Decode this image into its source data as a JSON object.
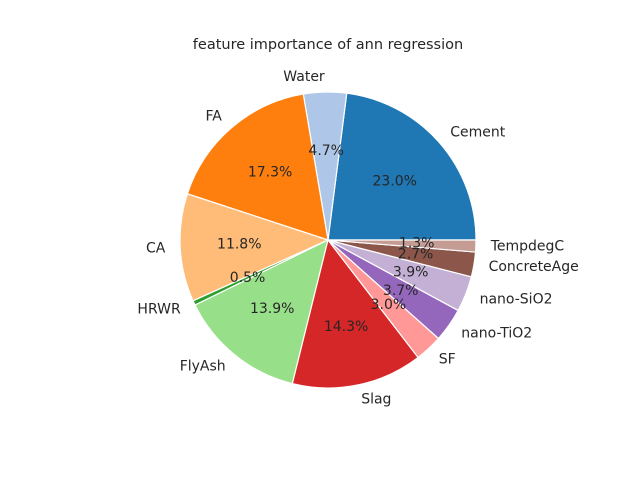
{
  "chart_data": {
    "type": "pie",
    "title": "feature importance of ann regression",
    "slices": [
      {
        "label": "Cement",
        "value": 23.0,
        "pct_label": "23.0%",
        "color": "#1f77b4"
      },
      {
        "label": "Water",
        "value": 4.7,
        "pct_label": "4.7%",
        "color": "#aec7e8"
      },
      {
        "label": "FA",
        "value": 17.3,
        "pct_label": "17.3%",
        "color": "#ff7f0e"
      },
      {
        "label": "CA",
        "value": 11.8,
        "pct_label": "11.8%",
        "color": "#ffbb78"
      },
      {
        "label": "HRWR",
        "value": 0.5,
        "pct_label": "0.5%",
        "color": "#2ca02c"
      },
      {
        "label": "FlyAsh",
        "value": 13.9,
        "pct_label": "13.9%",
        "color": "#98df8a"
      },
      {
        "label": "Slag",
        "value": 14.3,
        "pct_label": "14.3%",
        "color": "#d62728"
      },
      {
        "label": "SF",
        "value": 3.0,
        "pct_label": "3.0%",
        "color": "#ff9896"
      },
      {
        "label": "nano-TiO2",
        "value": 3.7,
        "pct_label": "3.7%",
        "color": "#9467bd"
      },
      {
        "label": "nano-SiO2",
        "value": 3.9,
        "pct_label": "3.9%",
        "color": "#c5b0d5"
      },
      {
        "label": "ConcreteAge",
        "value": 2.7,
        "pct_label": "2.7%",
        "color": "#8c564b"
      },
      {
        "label": "TempdegC",
        "value": 1.3,
        "pct_label": "1.3%",
        "color": "#c49c94"
      }
    ],
    "start_angle_deg": 0,
    "direction": "counterclockwise",
    "wedge_edge_color": "#ffffff"
  }
}
